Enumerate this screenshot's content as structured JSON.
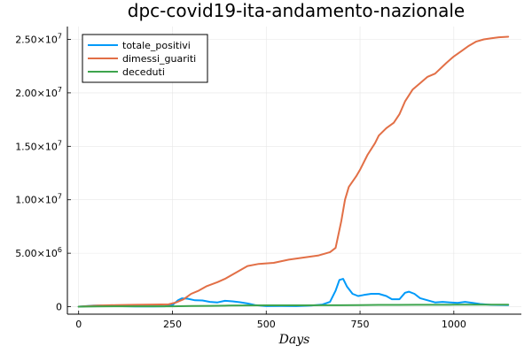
{
  "chart_data": {
    "type": "line",
    "title": "dpc-covid19-ita-andamento-nazionale",
    "xlabel": "Days",
    "ylabel": "",
    "xlim": [
      -30,
      1180
    ],
    "ylim": [
      -700000,
      26200000
    ],
    "xticks": [
      0,
      250,
      500,
      750,
      1000
    ],
    "xtick_labels": [
      "0",
      "250",
      "500",
      "750",
      "1000"
    ],
    "yticks": [
      0,
      5000000,
      10000000,
      15000000,
      20000000,
      25000000
    ],
    "ytick_labels": [
      {
        "mantissa": "0",
        "exp": ""
      },
      {
        "mantissa": "5.00×10",
        "exp": "6"
      },
      {
        "mantissa": "1.00×10",
        "exp": "7"
      },
      {
        "mantissa": "1.50×10",
        "exp": "7"
      },
      {
        "mantissa": "2.00×10",
        "exp": "7"
      },
      {
        "mantissa": "2.50×10",
        "exp": "7"
      }
    ],
    "grid": true,
    "legend_position": "top-left",
    "series": [
      {
        "name": "totale_positivi",
        "color": "#009af9",
        "points": [
          [
            0,
            0
          ],
          [
            20,
            50000
          ],
          [
            40,
            100000
          ],
          [
            60,
            100000
          ],
          [
            80,
            80000
          ],
          [
            100,
            50000
          ],
          [
            150,
            20000
          ],
          [
            200,
            20000
          ],
          [
            230,
            40000
          ],
          [
            250,
            150000
          ],
          [
            265,
            600000
          ],
          [
            275,
            780000
          ],
          [
            290,
            750000
          ],
          [
            310,
            600000
          ],
          [
            330,
            580000
          ],
          [
            350,
            450000
          ],
          [
            370,
            400000
          ],
          [
            390,
            550000
          ],
          [
            410,
            500000
          ],
          [
            430,
            420000
          ],
          [
            450,
            300000
          ],
          [
            470,
            150000
          ],
          [
            500,
            50000
          ],
          [
            540,
            60000
          ],
          [
            580,
            50000
          ],
          [
            620,
            100000
          ],
          [
            650,
            200000
          ],
          [
            670,
            450000
          ],
          [
            685,
            1500000
          ],
          [
            695,
            2500000
          ],
          [
            705,
            2600000
          ],
          [
            715,
            1900000
          ],
          [
            730,
            1200000
          ],
          [
            745,
            1000000
          ],
          [
            760,
            1100000
          ],
          [
            780,
            1200000
          ],
          [
            800,
            1200000
          ],
          [
            820,
            1000000
          ],
          [
            835,
            700000
          ],
          [
            855,
            700000
          ],
          [
            870,
            1300000
          ],
          [
            880,
            1400000
          ],
          [
            895,
            1200000
          ],
          [
            910,
            800000
          ],
          [
            930,
            600000
          ],
          [
            950,
            400000
          ],
          [
            970,
            450000
          ],
          [
            990,
            400000
          ],
          [
            1010,
            350000
          ],
          [
            1030,
            450000
          ],
          [
            1050,
            350000
          ],
          [
            1070,
            250000
          ],
          [
            1100,
            170000
          ],
          [
            1145,
            150000
          ]
        ]
      },
      {
        "name": "dimessi_guariti",
        "color": "#e26f46",
        "points": [
          [
            0,
            0
          ],
          [
            50,
            100000
          ],
          [
            100,
            150000
          ],
          [
            150,
            180000
          ],
          [
            200,
            200000
          ],
          [
            240,
            220000
          ],
          [
            260,
            400000
          ],
          [
            280,
            700000
          ],
          [
            300,
            1200000
          ],
          [
            320,
            1500000
          ],
          [
            340,
            1900000
          ],
          [
            370,
            2300000
          ],
          [
            390,
            2600000
          ],
          [
            420,
            3200000
          ],
          [
            450,
            3800000
          ],
          [
            480,
            4000000
          ],
          [
            520,
            4100000
          ],
          [
            560,
            4400000
          ],
          [
            600,
            4600000
          ],
          [
            640,
            4800000
          ],
          [
            670,
            5100000
          ],
          [
            685,
            5500000
          ],
          [
            700,
            8000000
          ],
          [
            710,
            10000000
          ],
          [
            720,
            11200000
          ],
          [
            740,
            12200000
          ],
          [
            750,
            12800000
          ],
          [
            770,
            14200000
          ],
          [
            790,
            15300000
          ],
          [
            800,
            16000000
          ],
          [
            820,
            16700000
          ],
          [
            840,
            17200000
          ],
          [
            855,
            18000000
          ],
          [
            870,
            19200000
          ],
          [
            890,
            20300000
          ],
          [
            910,
            20900000
          ],
          [
            930,
            21500000
          ],
          [
            950,
            21800000
          ],
          [
            980,
            22800000
          ],
          [
            1000,
            23400000
          ],
          [
            1020,
            23900000
          ],
          [
            1040,
            24400000
          ],
          [
            1060,
            24800000
          ],
          [
            1080,
            25000000
          ],
          [
            1100,
            25100000
          ],
          [
            1120,
            25200000
          ],
          [
            1145,
            25250000
          ]
        ]
      },
      {
        "name": "deceduti",
        "color": "#3da44d",
        "points": [
          [
            0,
            0
          ],
          [
            50,
            30000
          ],
          [
            100,
            35000
          ],
          [
            200,
            36000
          ],
          [
            250,
            38000
          ],
          [
            300,
            60000
          ],
          [
            350,
            80000
          ],
          [
            400,
            100000
          ],
          [
            450,
            120000
          ],
          [
            500,
            125000
          ],
          [
            550,
            128000
          ],
          [
            600,
            130000
          ],
          [
            650,
            134000
          ],
          [
            700,
            140000
          ],
          [
            750,
            155000
          ],
          [
            800,
            165000
          ],
          [
            850,
            170000
          ],
          [
            900,
            175000
          ],
          [
            950,
            178000
          ],
          [
            1000,
            182000
          ],
          [
            1050,
            186000
          ],
          [
            1100,
            188000
          ],
          [
            1145,
            190000
          ]
        ]
      }
    ]
  }
}
